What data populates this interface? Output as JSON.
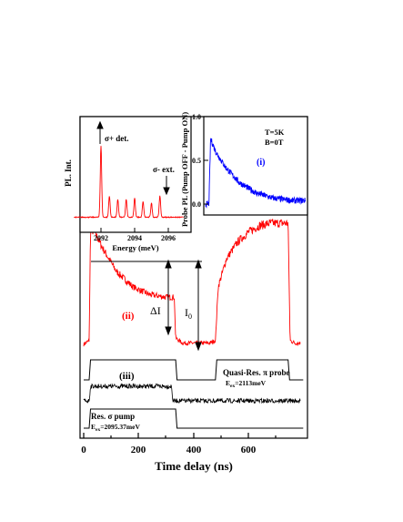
{
  "figure": {
    "xaxis": {
      "label": "Time delay (ns)",
      "ticks": [
        "0",
        "200",
        "400",
        "600"
      ]
    },
    "annotations": {
      "trace_ii": "(ii)",
      "trace_iii": "(iii)",
      "delta_i": "ΔI",
      "i0": "I",
      "i0_sub": "0",
      "probe_label_1": "Quasi-Res. π probe",
      "probe_label_2": "E",
      "probe_label_2_sub": "ex",
      "probe_label_2_rest": "=2113meV",
      "pump_label_1": "Res. σ pump",
      "pump_label_2": "E",
      "pump_label_2_sub": "ex",
      "pump_label_2_rest": "=2095.37meV"
    },
    "inset_left": {
      "ylabel": "PL. Int.",
      "xlabel": "Energy (meV)",
      "xticks": [
        "2092",
        "2094",
        "2096"
      ],
      "arrow1": "σ+ det.",
      "arrow2": "σ- ext."
    },
    "inset_right": {
      "ylabel": "Probe PL (Pump OFF - Pump ON)",
      "yticks": [
        "0.0",
        "0.5",
        "1.0"
      ],
      "trace": "(i)",
      "cond1": "T=5K",
      "cond2": "B=0T"
    },
    "colors": {
      "main": "#ff0000",
      "inset_i": "#0000ff",
      "trace_iii": "#000000",
      "axes": "#000000"
    }
  },
  "chart_data": [
    {
      "type": "line",
      "title": "",
      "xlabel": "Time delay (ns)",
      "ylabel": "",
      "xlim": [
        -20,
        800
      ],
      "series": [
        {
          "name": "(ii)",
          "x": [
            0,
            20,
            25,
            40,
            70,
            120,
            180,
            240,
            300,
            330,
            335,
            360,
            420,
            460,
            480,
            490,
            520,
            560,
            600,
            640,
            680,
            720,
            745,
            752,
            770,
            790
          ],
          "y": [
            0.05,
            0.08,
            0.95,
            0.93,
            0.8,
            0.62,
            0.5,
            0.44,
            0.42,
            0.42,
            0.1,
            0.06,
            0.06,
            0.06,
            0.08,
            0.5,
            0.72,
            0.85,
            0.93,
            0.98,
            1.0,
            1.0,
            1.0,
            0.08,
            0.06,
            0.06
          ]
        },
        {
          "name": "(iii)",
          "x": [
            0,
            20,
            25,
            320,
            325,
            800
          ],
          "y": [
            0.0,
            0.0,
            1.0,
            1.0,
            0.0,
            0.0
          ]
        },
        {
          "name": "pump pulse",
          "x": [
            0,
            20,
            25,
            335,
            340,
            800
          ],
          "y": [
            0,
            0,
            1,
            1,
            0,
            0
          ]
        },
        {
          "name": "probe pulse",
          "x": [
            0,
            20,
            25,
            335,
            340,
            480,
            485,
            745,
            750,
            800
          ],
          "y": [
            0,
            0,
            1,
            1,
            0,
            0,
            1,
            1,
            0,
            0
          ]
        }
      ]
    },
    {
      "type": "line",
      "title": "",
      "xlabel": "Energy (meV)",
      "ylabel": "PL. Int.",
      "xlim": [
        2090.3,
        2097.0
      ],
      "series": [
        {
          "name": "PL",
          "x": [
            2092.0,
            2092.5,
            2093.0,
            2093.5,
            2094.0,
            2094.5,
            2095.0,
            2095.5
          ],
          "y": [
            1.0,
            0.3,
            0.25,
            0.25,
            0.27,
            0.22,
            0.2,
            0.3
          ]
        }
      ]
    },
    {
      "type": "line",
      "title": "",
      "xlabel": "",
      "ylabel": "Probe PL (Pump OFF - Pump ON)",
      "ylim": [
        0.0,
        1.0
      ],
      "series": [
        {
          "name": "(i)",
          "x": [
            0,
            10,
            15,
            30,
            60,
            100,
            150,
            200,
            260
          ],
          "y": [
            0.0,
            0.0,
            0.75,
            0.6,
            0.42,
            0.25,
            0.13,
            0.07,
            0.04
          ]
        }
      ]
    }
  ]
}
